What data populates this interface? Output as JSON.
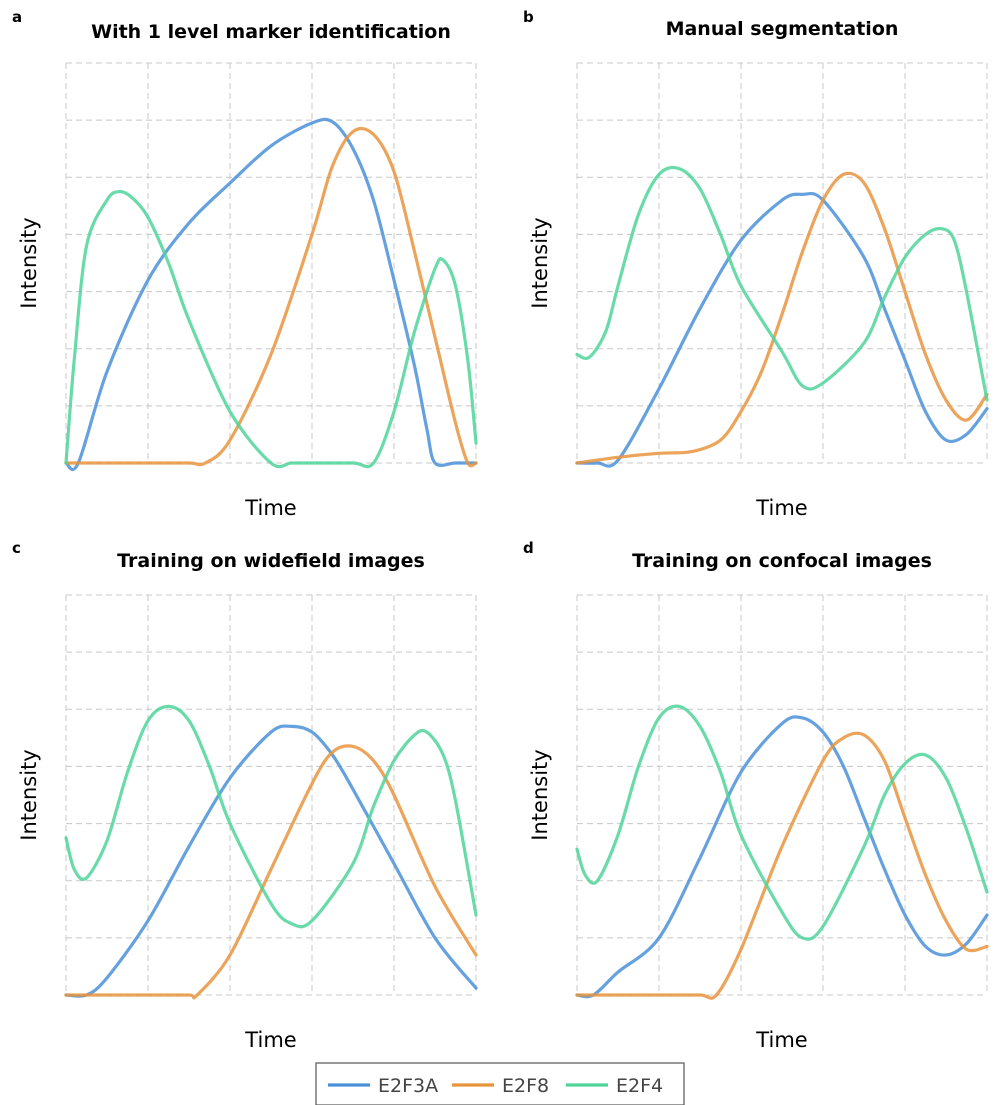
{
  "colors": {
    "E2F3A": "#4a90d9",
    "E2F8": "#e8943d",
    "E2F4": "#4fd49a"
  },
  "legend": {
    "position": "bottom-center",
    "entries": [
      "E2F3A",
      "E2F8",
      "E2F4"
    ]
  },
  "chart_data": [
    {
      "panel": "a",
      "type": "line",
      "title": "With 1 level marker identification",
      "xlabel": "Time",
      "ylabel": "Intensity",
      "xlim": [
        0,
        10
      ],
      "ylim": [
        0,
        7
      ],
      "grid": true,
      "series": [
        {
          "name": "E2F3A",
          "x": [
            0,
            0.3,
            1,
            2,
            3,
            4,
            5,
            6,
            6.5,
            7,
            7.5,
            8,
            8.5,
            8.8,
            9,
            9.5,
            10
          ],
          "y": [
            0,
            0,
            1.6,
            3.2,
            4.2,
            4.9,
            5.55,
            5.95,
            5.97,
            5.5,
            4.6,
            3.2,
            1.7,
            0.6,
            0,
            0,
            0
          ]
        },
        {
          "name": "E2F8",
          "x": [
            0,
            1,
            2,
            3,
            3.4,
            4,
            5,
            6,
            6.5,
            7,
            7.5,
            8,
            8.5,
            9,
            9.5,
            9.8,
            10
          ],
          "y": [
            0,
            0,
            0,
            0,
            0,
            0.4,
            1.9,
            4,
            5.2,
            5.8,
            5.75,
            5.1,
            3.7,
            2.2,
            0.7,
            0,
            0
          ]
        },
        {
          "name": "E2F4",
          "x": [
            0,
            0.2,
            0.5,
            1,
            1.3,
            1.6,
            2,
            2.5,
            3,
            4,
            5,
            5.5,
            6,
            7,
            7.5,
            8,
            8.5,
            9,
            9.2,
            9.5,
            9.8,
            10
          ],
          "y": [
            0,
            1.8,
            3.8,
            4.6,
            4.75,
            4.65,
            4.3,
            3.5,
            2.5,
            0.9,
            0,
            0,
            0,
            0,
            0,
            0.9,
            2.3,
            3.4,
            3.55,
            3.1,
            1.8,
            0.35
          ]
        }
      ]
    },
    {
      "panel": "b",
      "type": "line",
      "title": "Manual segmentation",
      "xlabel": "Time",
      "ylabel": "Intensity",
      "xlim": [
        0,
        10
      ],
      "ylim": [
        0,
        7
      ],
      "grid": true,
      "series": [
        {
          "name": "E2F3A",
          "x": [
            0,
            0.5,
            1,
            2,
            3,
            4,
            5,
            5.5,
            6,
            7,
            7.5,
            8,
            8.5,
            9,
            9.5,
            10
          ],
          "y": [
            0,
            0,
            0.05,
            1.3,
            2.7,
            3.9,
            4.6,
            4.7,
            4.6,
            3.6,
            2.7,
            1.8,
            0.9,
            0.4,
            0.5,
            0.95
          ]
        },
        {
          "name": "E2F8",
          "x": [
            0,
            1,
            2,
            2.8,
            3.5,
            4,
            4.5,
            5,
            5.5,
            6,
            6.5,
            7,
            7.5,
            8,
            8.5,
            9,
            9.5,
            10
          ],
          "y": [
            0,
            0.1,
            0.17,
            0.2,
            0.4,
            0.9,
            1.6,
            2.6,
            3.7,
            4.6,
            5.05,
            4.9,
            4.1,
            3.0,
            1.9,
            1.1,
            0.75,
            1.2
          ]
        },
        {
          "name": "E2F4",
          "x": [
            0,
            0.3,
            0.7,
            1,
            1.5,
            2,
            2.5,
            3,
            3.5,
            4,
            5,
            5.5,
            6,
            7,
            7.5,
            8,
            8.5,
            8.9,
            9.2,
            9.5,
            10
          ],
          "y": [
            1.9,
            1.85,
            2.3,
            3.1,
            4.35,
            5.05,
            5.15,
            4.8,
            4.0,
            3.1,
            1.95,
            1.35,
            1.4,
            2.1,
            2.9,
            3.6,
            4.0,
            4.1,
            3.9,
            3.0,
            1.1
          ]
        }
      ]
    },
    {
      "panel": "c",
      "type": "line",
      "title": "Training on widefield images",
      "xlabel": "Time",
      "ylabel": "Intensity",
      "xlim": [
        0,
        10
      ],
      "ylim": [
        0,
        7
      ],
      "grid": true,
      "series": [
        {
          "name": "E2F3A",
          "x": [
            0,
            0.5,
            1,
            2,
            3,
            4,
            5,
            5.5,
            6,
            6.5,
            7,
            8,
            9,
            10
          ],
          "y": [
            0,
            0,
            0.3,
            1.3,
            2.6,
            3.8,
            4.6,
            4.7,
            4.6,
            4.2,
            3.6,
            2.3,
            1.0,
            0.12
          ]
        },
        {
          "name": "E2F8",
          "x": [
            0,
            1,
            2,
            3,
            3.2,
            4,
            5,
            6,
            6.5,
            7,
            7.5,
            8,
            9,
            10
          ],
          "y": [
            0,
            0,
            0,
            0,
            0,
            0.7,
            2.2,
            3.7,
            4.25,
            4.35,
            4.1,
            3.5,
            1.9,
            0.7
          ]
        },
        {
          "name": "E2F4",
          "x": [
            0,
            0.2,
            0.5,
            1,
            1.5,
            2,
            2.5,
            3,
            3.5,
            4,
            5,
            5.5,
            6,
            7,
            7.5,
            8,
            8.5,
            8.8,
            9.2,
            9.5,
            10
          ],
          "y": [
            2.75,
            2.2,
            2.05,
            2.7,
            3.9,
            4.8,
            5.05,
            4.8,
            4.0,
            3.0,
            1.6,
            1.25,
            1.3,
            2.3,
            3.3,
            4.1,
            4.55,
            4.6,
            4.2,
            3.4,
            1.4
          ]
        }
      ]
    },
    {
      "panel": "d",
      "type": "line",
      "title": "Training on confocal images",
      "xlabel": "Time",
      "ylabel": "Intensity",
      "xlim": [
        0,
        10
      ],
      "ylim": [
        0,
        7
      ],
      "grid": true,
      "series": [
        {
          "name": "E2F3A",
          "x": [
            0,
            0.4,
            1,
            2,
            3,
            4,
            5,
            5.5,
            6,
            6.5,
            7,
            7.5,
            8,
            8.5,
            9,
            9.5,
            10
          ],
          "y": [
            0,
            0,
            0.4,
            1.0,
            2.4,
            3.9,
            4.75,
            4.85,
            4.6,
            4.0,
            3.1,
            2.2,
            1.4,
            0.85,
            0.7,
            0.9,
            1.4
          ]
        },
        {
          "name": "E2F8",
          "x": [
            0,
            1,
            2,
            3,
            3.4,
            4,
            5,
            6,
            6.5,
            7,
            7.5,
            8,
            8.5,
            9,
            9.5,
            10
          ],
          "y": [
            0,
            0,
            0,
            0,
            0,
            0.8,
            2.6,
            4.1,
            4.5,
            4.55,
            4.1,
            3.1,
            2.1,
            1.3,
            0.8,
            0.85
          ]
        },
        {
          "name": "E2F4",
          "x": [
            0,
            0.2,
            0.5,
            1,
            1.5,
            2,
            2.5,
            3,
            3.5,
            4,
            5,
            5.5,
            6,
            7,
            7.5,
            8,
            8.5,
            9,
            9.5,
            10
          ],
          "y": [
            2.55,
            2.1,
            2.0,
            2.8,
            4.0,
            4.85,
            5.05,
            4.7,
            3.9,
            2.8,
            1.45,
            1.0,
            1.2,
            2.6,
            3.5,
            4.05,
            4.2,
            3.8,
            2.9,
            1.8
          ]
        }
      ]
    }
  ]
}
